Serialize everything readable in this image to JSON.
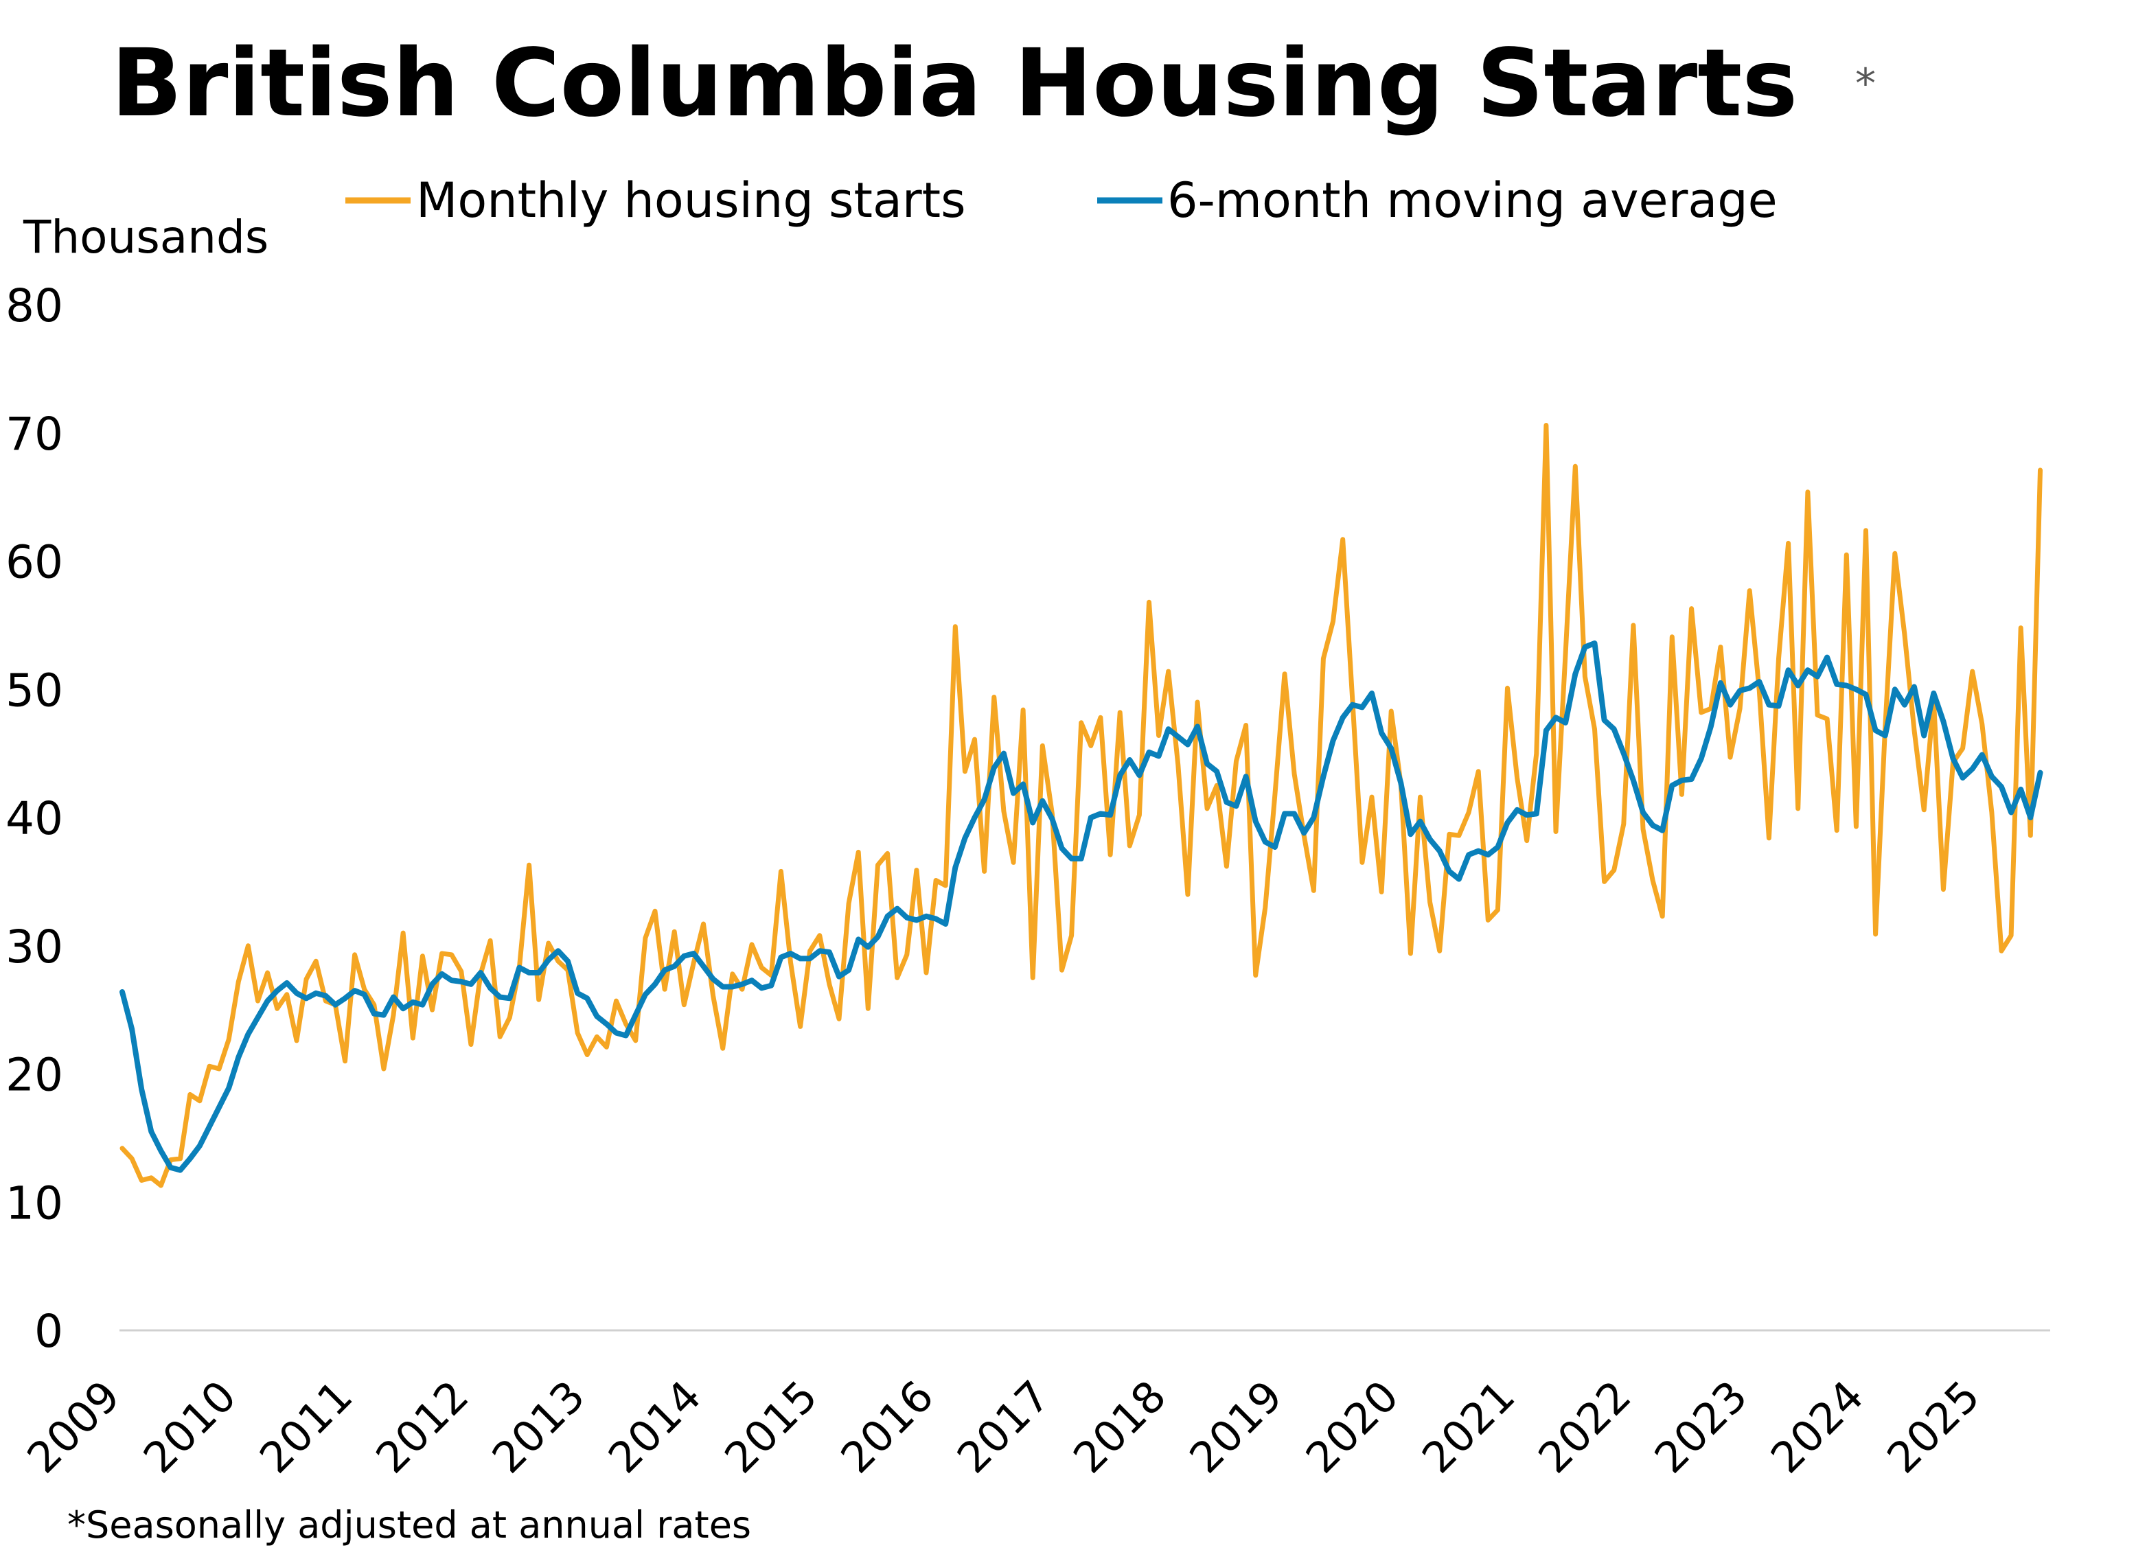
{
  "chart_data": {
    "type": "line",
    "title": "British Columbia Housing Starts",
    "title_mark": "*",
    "ylabel": "Thousands",
    "xlabel": "",
    "ylim": [
      0,
      80
    ],
    "y_ticks": [
      "0",
      "10",
      "20",
      "30",
      "40",
      "50",
      "60",
      "70",
      "80"
    ],
    "x_ticks": [
      "2009",
      "2010",
      "2011",
      "2012",
      "2013",
      "2014",
      "2015",
      "2016",
      "2017",
      "2018",
      "2019",
      "2020",
      "2021",
      "2022",
      "2023",
      "2024",
      "2025"
    ],
    "x_start": "2009-01",
    "grid": false,
    "legend_position": "top",
    "footnote": "*Seasonally adjusted at annual rates",
    "series": [
      {
        "name": "Monthly housing starts",
        "color": "#F5A623",
        "values": [
          14.2,
          13.4,
          11.7,
          11.9,
          11.3,
          13.3,
          13.4,
          18.4,
          17.9,
          20.6,
          20.4,
          22.7,
          27.2,
          30.0,
          25.7,
          27.9,
          25.1,
          26.2,
          22.6,
          27.4,
          28.8,
          25.7,
          25.4,
          21.0,
          29.3,
          26.6,
          25.4,
          20.4,
          24.6,
          31.0,
          22.8,
          29.2,
          25.0,
          29.4,
          29.3,
          28.0,
          22.3,
          27.8,
          30.4,
          22.9,
          24.4,
          28.3,
          36.3,
          25.8,
          30.2,
          28.8,
          28.1,
          23.2,
          21.5,
          22.9,
          22.1,
          25.7,
          23.9,
          22.6,
          30.6,
          32.7,
          26.6,
          31.1,
          25.4,
          28.7,
          31.7,
          26.1,
          22.0,
          27.8,
          26.6,
          30.1,
          28.3,
          27.7,
          35.8,
          28.7,
          23.7,
          29.6,
          30.8,
          27.0,
          24.3,
          33.3,
          37.3,
          25.1,
          36.3,
          37.2,
          27.5,
          29.3,
          35.9,
          27.9,
          35.1,
          34.7,
          54.9,
          43.6,
          46.1,
          35.8,
          49.4,
          40.5,
          36.5,
          48.4,
          27.5,
          45.6,
          40.3,
          28.1,
          30.8,
          47.4,
          45.6,
          47.8,
          37.1,
          48.2,
          37.8,
          40.2,
          56.8,
          46.4,
          51.4,
          44.1,
          34.0,
          49.0,
          40.7,
          42.5,
          36.2,
          44.4,
          47.2,
          27.7,
          33.0,
          41.8,
          51.2,
          43.4,
          38.6,
          34.3,
          52.4,
          55.3,
          61.7,
          49.2,
          36.5,
          41.6,
          34.2,
          48.3,
          42.6,
          29.4,
          41.6,
          33.4,
          29.6,
          38.7,
          38.6,
          40.4,
          43.6,
          32.0,
          32.8,
          50.1,
          43.1,
          38.2,
          45.0,
          70.6,
          38.9,
          52.8,
          67.4,
          51.0,
          46.9,
          35.0,
          35.9,
          39.5,
          55.0,
          39.1,
          35.1,
          32.3,
          54.1,
          41.8,
          56.3,
          48.2,
          48.5,
          53.3,
          44.7,
          48.5,
          57.7,
          49.9,
          38.4,
          52.4,
          61.4,
          40.7,
          65.4,
          48.0,
          47.7,
          39.0,
          60.5,
          39.3,
          62.4,
          30.9,
          47.1,
          60.6,
          54.3,
          46.8,
          40.6,
          49.2,
          34.4,
          44.3,
          45.4,
          51.4,
          47.3,
          40.4,
          29.6,
          30.8,
          54.8,
          38.6,
          67.1
        ]
      },
      {
        "name": "6-month moving average",
        "color": "#0A80BA",
        "values": [
          26.4,
          23.5,
          18.8,
          15.5,
          14.0,
          12.7,
          12.5,
          13.4,
          14.4,
          15.9,
          17.4,
          18.9,
          21.3,
          23.1,
          24.4,
          25.7,
          26.5,
          27.1,
          26.3,
          25.9,
          26.3,
          26.1,
          25.4,
          25.9,
          26.5,
          26.2,
          24.7,
          24.6,
          26.0,
          25.1,
          25.6,
          25.4,
          27.0,
          27.8,
          27.3,
          27.2,
          27.0,
          27.9,
          26.7,
          26.0,
          25.9,
          28.3,
          27.9,
          27.9,
          28.9,
          29.6,
          28.8,
          26.3,
          25.9,
          24.5,
          23.9,
          23.2,
          23.0,
          24.6,
          26.2,
          27.0,
          28.1,
          28.4,
          29.2,
          29.4,
          28.4,
          27.4,
          26.8,
          26.8,
          27.0,
          27.3,
          26.7,
          26.9,
          29.1,
          29.4,
          29.0,
          29.0,
          29.6,
          29.5,
          27.6,
          28.1,
          30.5,
          29.9,
          30.7,
          32.3,
          32.9,
          32.2,
          32.0,
          32.3,
          32.1,
          31.7,
          36.1,
          38.4,
          40.0,
          41.4,
          43.9,
          45.0,
          41.9,
          42.6,
          39.6,
          41.3,
          39.9,
          37.6,
          36.8,
          36.8,
          40.0,
          40.3,
          40.2,
          43.3,
          44.5,
          43.3,
          45.1,
          44.8,
          46.9,
          46.3,
          45.7,
          47.1,
          44.2,
          43.6,
          41.2,
          40.9,
          43.2,
          39.7,
          38.1,
          37.7,
          40.3,
          40.3,
          38.8,
          40.0,
          43.2,
          46.0,
          47.8,
          48.8,
          48.6,
          49.7,
          46.6,
          45.4,
          42.7,
          38.7,
          39.7,
          38.3,
          37.4,
          35.8,
          35.2,
          37.1,
          37.4,
          37.1,
          37.7,
          39.6,
          40.6,
          40.2,
          40.3,
          46.8,
          47.8,
          47.4,
          51.2,
          53.3,
          53.6,
          47.6,
          46.9,
          45.0,
          42.9,
          40.4,
          39.4,
          39.0,
          42.5,
          42.9,
          43.0,
          44.6,
          47.1,
          50.5,
          48.8,
          49.9,
          50.1,
          50.6,
          48.8,
          48.7,
          51.5,
          50.3,
          51.5,
          51.0,
          52.5,
          50.4,
          50.3,
          50.0,
          49.6,
          46.8,
          46.4,
          50.0,
          48.8,
          50.2,
          46.4,
          49.7,
          47.5,
          44.6,
          43.1,
          43.8,
          44.9,
          43.2,
          42.4,
          40.4,
          42.2,
          40.0,
          43.5
        ]
      }
    ]
  }
}
